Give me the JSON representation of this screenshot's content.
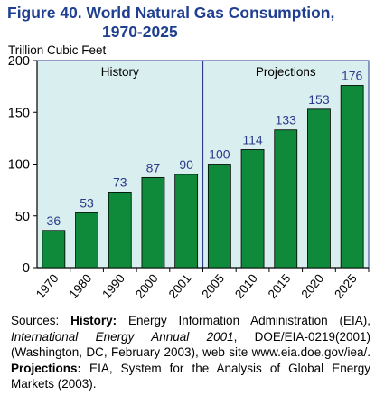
{
  "figure": {
    "title_line1": "Figure 40.  World Natural Gas Consumption,",
    "title_line2": "1970-2025"
  },
  "colors": {
    "title": "#1f3f91",
    "bar": "#0e8a3a",
    "bar_edge": "#000000",
    "region_fill": "#d9eeee",
    "label": "#2b3a8c",
    "axis": "#000000"
  },
  "chart_data": {
    "type": "bar",
    "title": "World Natural Gas Consumption, 1970-2025",
    "ylabel": "Trillion Cubic Feet",
    "xlabel": "",
    "categories": [
      "1970",
      "1980",
      "1990",
      "2000",
      "2001",
      "2005",
      "2010",
      "2015",
      "2020",
      "2025"
    ],
    "values": [
      36,
      53,
      73,
      87,
      90,
      100,
      114,
      133,
      153,
      176
    ],
    "ylim": [
      0,
      200
    ],
    "yticks": [
      0,
      50,
      100,
      150,
      200
    ],
    "regions": [
      {
        "label": "History",
        "from_index": 0,
        "to_index": 4
      },
      {
        "label": "Projections",
        "from_index": 5,
        "to_index": 9
      }
    ],
    "grid": false,
    "legend": "none"
  },
  "sources": {
    "prefix": "Sources: ",
    "history_label": "History:",
    "history_text_1": " Energy Information Administration (EIA), ",
    "history_italic": "International Energy Annual 2001",
    "history_text_2": ", DOE/EIA-0219(2001) (Washington, DC, February 2003), web site www.eia.doe.gov/iea/. ",
    "projections_label": "Projections:",
    "projections_text": " EIA, System for the Analysis of Global Energy Markets (2003)."
  }
}
